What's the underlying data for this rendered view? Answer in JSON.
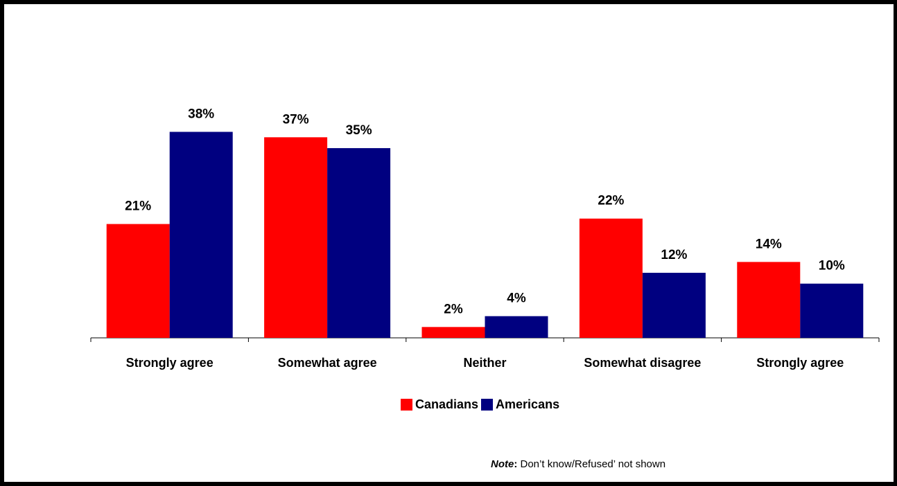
{
  "chart_data": {
    "type": "bar",
    "categories": [
      "Strongly agree",
      "Somewhat agree",
      "Neither",
      "Somewhat disagree",
      "Strongly agree"
    ],
    "series": [
      {
        "name": "Canadians",
        "values": [
          21,
          37,
          2,
          22,
          14
        ],
        "labels": [
          "21%",
          "37%",
          "2%",
          "22%",
          "14%"
        ]
      },
      {
        "name": "Americans",
        "values": [
          38,
          35,
          4,
          12,
          10
        ],
        "labels": [
          "38%",
          "35%",
          "4%",
          "12%",
          "10%"
        ]
      }
    ],
    "ylim": [
      0,
      48
    ],
    "grid": false,
    "legend_position": "bottom-center",
    "colors": {
      "Canadians": "#ff0000",
      "Americans": "#000080"
    }
  },
  "note": {
    "label": "Note",
    "colon": ":",
    "text": " Don’t know/Refused’ not shown"
  }
}
